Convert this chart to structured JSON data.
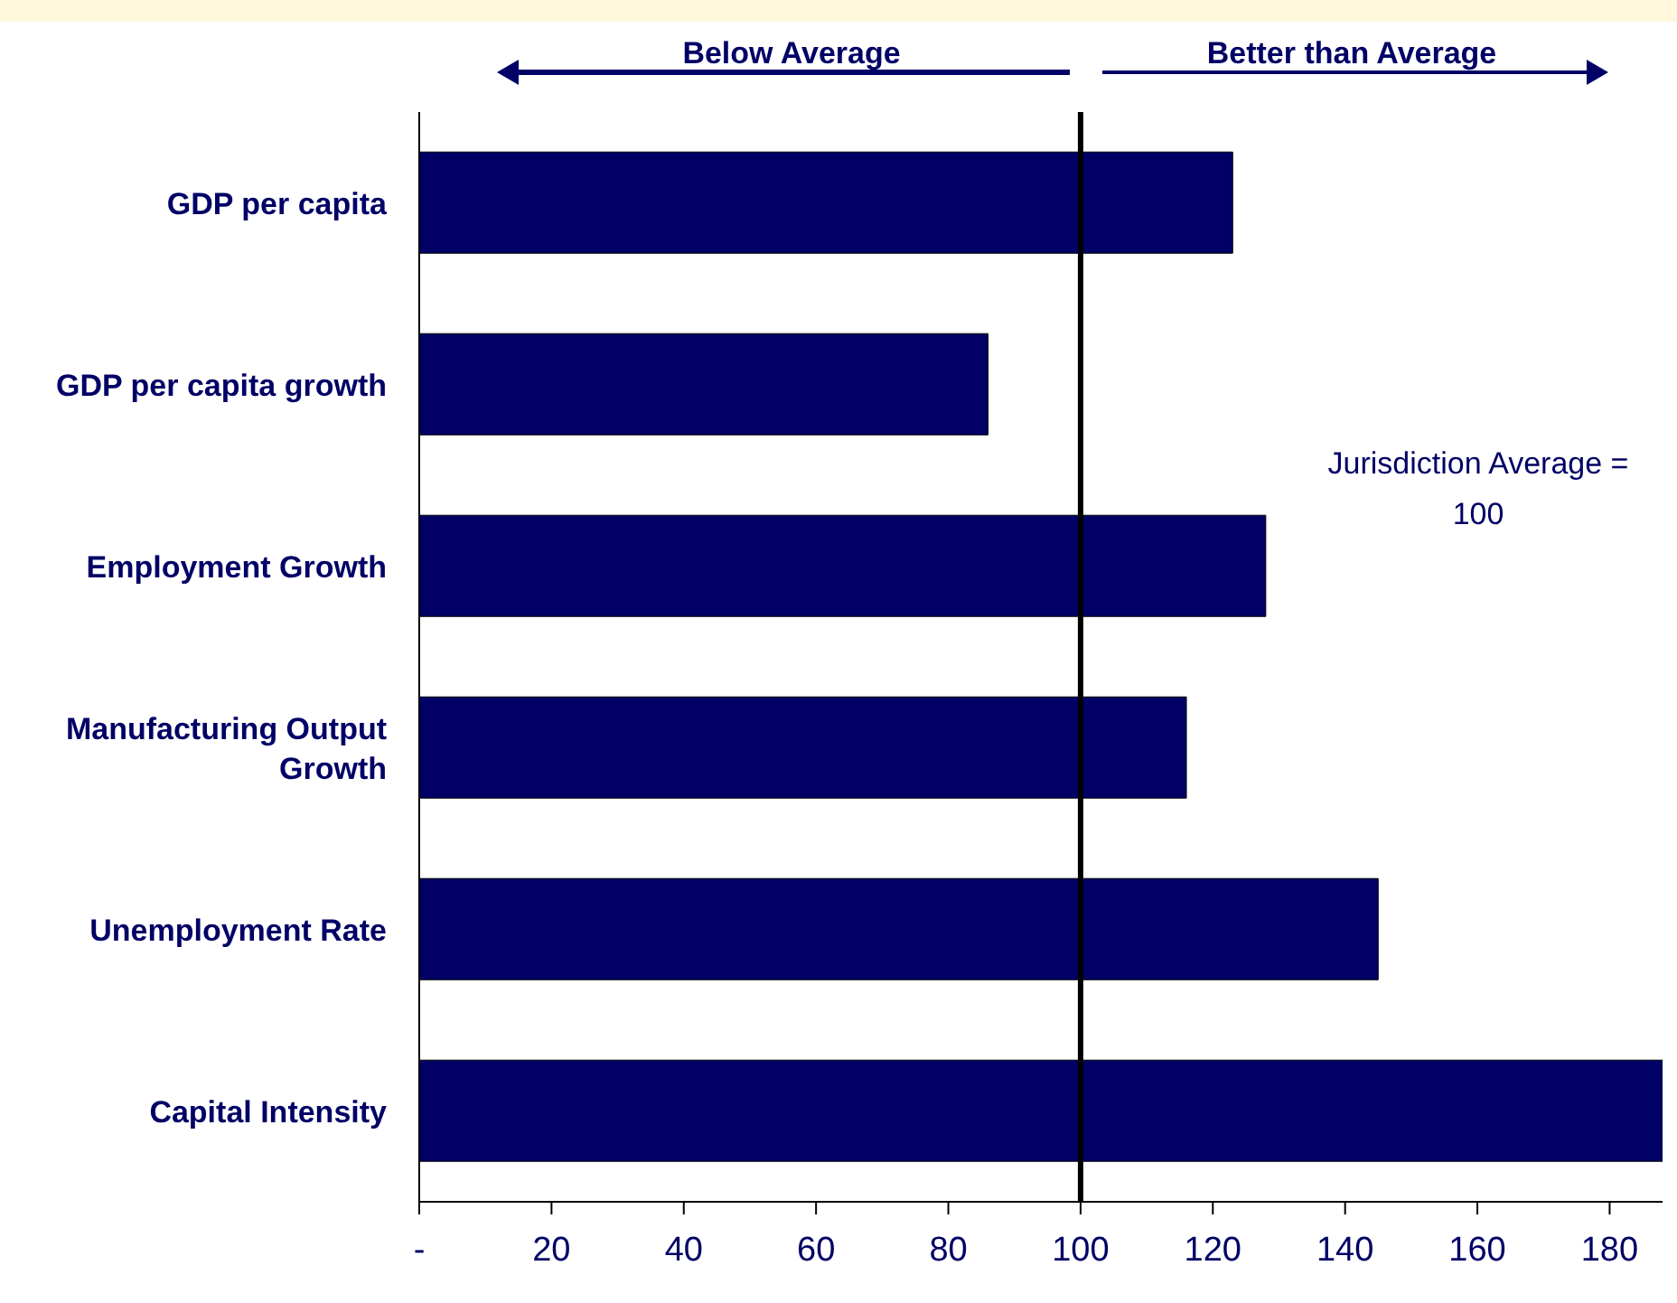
{
  "chart_data": {
    "type": "bar",
    "orientation": "horizontal",
    "categories": [
      "GDP per capita",
      "GDP per capita growth",
      "Employment Growth",
      "Manufacturing Output Growth",
      "Unemployment Rate",
      "Capital Intensity"
    ],
    "values": [
      123,
      86,
      128,
      116,
      145,
      188
    ],
    "color": "#000066",
    "xlim": [
      0,
      188
    ],
    "xticks": [
      {
        "value": 0,
        "label": "-"
      },
      20,
      40,
      60,
      80,
      100,
      120,
      140,
      160,
      180
    ],
    "ref_lines": [
      {
        "axis": "x",
        "value": 100,
        "color": "#000000"
      }
    ],
    "annotations": [
      "Below Average",
      "Better than Average",
      "Jurisdiction Average = 100"
    ]
  }
}
